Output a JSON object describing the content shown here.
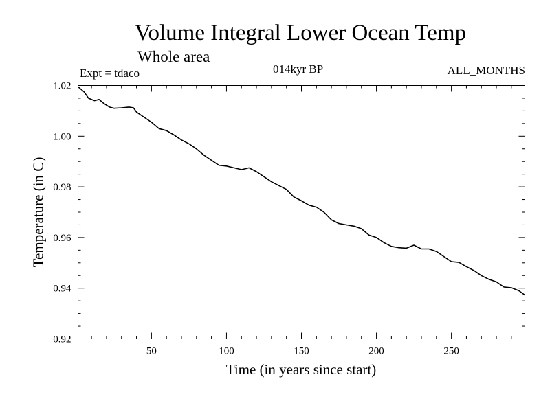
{
  "chart_data": {
    "type": "line",
    "title": "Volume Integral Lower Ocean Temp",
    "subtitle": "Whole area",
    "experiment": "Expt = tdaco",
    "period": "014kyr BP",
    "months": "ALL_MONTHS",
    "xlabel": "Time (in years since start)",
    "ylabel": "Temperature (in C)",
    "xlim": [
      1,
      299
    ],
    "ylim": [
      0.92,
      1.02
    ],
    "xticks": [
      50,
      100,
      150,
      200,
      250
    ],
    "xtick_labels": [
      "50",
      "100",
      "150",
      "200",
      "250"
    ],
    "yticks": [
      0.92,
      0.94,
      0.96,
      0.98,
      1.0,
      1.02
    ],
    "ytick_labels": [
      "0.92",
      "0.94",
      "0.96",
      "0.98",
      "1.00",
      "1.02"
    ],
    "grid": false,
    "series": [
      {
        "name": "Volume Integral Lower Ocean Temp",
        "x": [
          1,
          5,
          8,
          12,
          15,
          18,
          22,
          25,
          30,
          35,
          38,
          40,
          45,
          50,
          55,
          60,
          65,
          70,
          75,
          80,
          85,
          90,
          95,
          100,
          105,
          110,
          113,
          115,
          120,
          125,
          130,
          135,
          140,
          145,
          150,
          155,
          160,
          165,
          170,
          175,
          180,
          185,
          190,
          195,
          200,
          205,
          210,
          215,
          220,
          225,
          230,
          235,
          240,
          245,
          250,
          255,
          260,
          265,
          270,
          275,
          280,
          285,
          290,
          295,
          299
        ],
        "values": [
          1.0195,
          1.0175,
          1.015,
          1.014,
          1.0145,
          1.013,
          1.0115,
          1.011,
          1.0112,
          1.0115,
          1.0112,
          1.0095,
          1.0075,
          1.0055,
          1.003,
          1.0022,
          1.0005,
          0.9985,
          0.997,
          0.995,
          0.9925,
          0.9905,
          0.9885,
          0.9882,
          0.9875,
          0.9868,
          0.9872,
          0.9875,
          0.986,
          0.984,
          0.982,
          0.9805,
          0.979,
          0.976,
          0.9745,
          0.9728,
          0.972,
          0.97,
          0.967,
          0.9655,
          0.965,
          0.9645,
          0.9635,
          0.961,
          0.96,
          0.958,
          0.9565,
          0.956,
          0.9558,
          0.957,
          0.9555,
          0.9555,
          0.9545,
          0.9525,
          0.9505,
          0.9502,
          0.9485,
          0.947,
          0.945,
          0.9435,
          0.9425,
          0.9405,
          0.9402,
          0.939,
          0.9373
        ]
      }
    ]
  }
}
